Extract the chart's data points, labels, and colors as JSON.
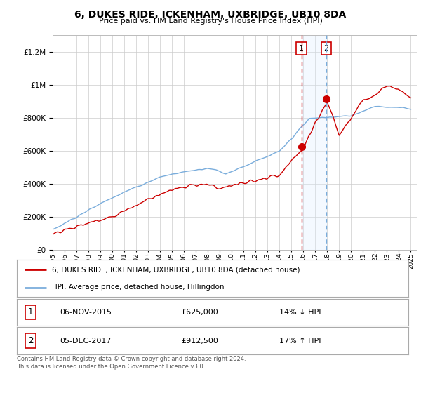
{
  "title": "6, DUKES RIDE, ICKENHAM, UXBRIDGE, UB10 8DA",
  "subtitle": "Price paid vs. HM Land Registry's House Price Index (HPI)",
  "ylim": [
    0,
    1300000
  ],
  "yticks": [
    0,
    200000,
    400000,
    600000,
    800000,
    1000000,
    1200000
  ],
  "line1_color": "#cc0000",
  "line2_color": "#7aaddc",
  "marker1_date": 2015.85,
  "marker1_value": 625000,
  "marker2_date": 2017.92,
  "marker2_value": 912500,
  "marker_color": "#cc0000",
  "shade_color": "#ddeeff",
  "vline1_color": "#cc0000",
  "vline2_color": "#7aaddc",
  "legend_label1": "6, DUKES RIDE, ICKENHAM, UXBRIDGE, UB10 8DA (detached house)",
  "legend_label2": "HPI: Average price, detached house, Hillingdon",
  "table_row1_num": "1",
  "table_row1_date": "06-NOV-2015",
  "table_row1_price": "£625,000",
  "table_row1_hpi": "14% ↓ HPI",
  "table_row2_num": "2",
  "table_row2_date": "05-DEC-2017",
  "table_row2_price": "£912,500",
  "table_row2_hpi": "17% ↑ HPI",
  "footer": "Contains HM Land Registry data © Crown copyright and database right 2024.\nThis data is licensed under the Open Government Licence v3.0.",
  "bg_color": "#ffffff",
  "plot_bg_color": "#ffffff",
  "grid_color": "#cccccc"
}
